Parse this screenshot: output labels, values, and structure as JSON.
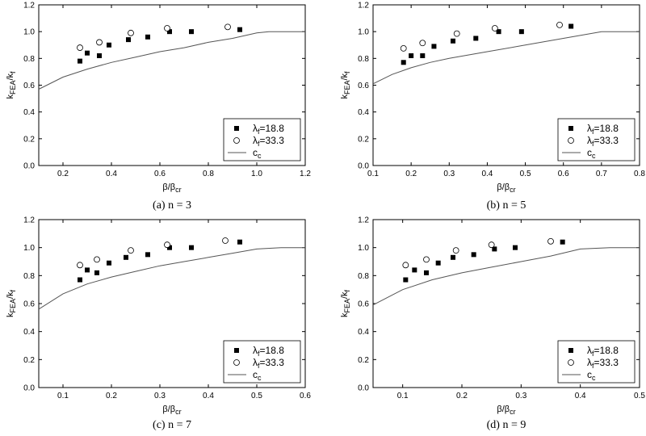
{
  "chart_data": [
    {
      "type": "scatter",
      "caption": "(a) n = 3",
      "xlabel": "β/βcr",
      "ylabel": "kFEA/kf",
      "xlim": [
        0.1,
        1.2
      ],
      "ylim": [
        0.0,
        1.2
      ],
      "xticks": [
        "0.2",
        "0.4",
        "0.6",
        "0.8",
        "1.0",
        "1.2"
      ],
      "yticks": [
        "0.0",
        "0.2",
        "0.4",
        "0.6",
        "0.8",
        "1.0",
        "1.2"
      ],
      "legend_position": "bottom-right",
      "series": [
        {
          "name": "λf=18.8",
          "marker": "filled-square",
          "x": [
            0.27,
            0.3,
            0.35,
            0.39,
            0.47,
            0.55,
            0.64,
            0.73,
            0.93
          ],
          "y": [
            0.78,
            0.84,
            0.82,
            0.9,
            0.94,
            0.96,
            1.0,
            1.0,
            1.015
          ]
        },
        {
          "name": "λf=33.3",
          "marker": "open-circle",
          "x": [
            0.27,
            0.35,
            0.48,
            0.63,
            0.88
          ],
          "y": [
            0.88,
            0.92,
            0.99,
            1.025,
            1.035
          ]
        },
        {
          "name": "cc",
          "marker": "line",
          "x": [
            0.1,
            0.2,
            0.3,
            0.4,
            0.5,
            0.6,
            0.7,
            0.8,
            0.9,
            1.0,
            1.05,
            1.2
          ],
          "y": [
            0.57,
            0.66,
            0.72,
            0.77,
            0.81,
            0.85,
            0.88,
            0.92,
            0.95,
            0.99,
            1.0,
            1.0
          ]
        }
      ]
    },
    {
      "type": "scatter",
      "caption": "(b) n = 5",
      "xlabel": "β/βcr",
      "ylabel": "kFEA/kf",
      "xlim": [
        0.1,
        0.8
      ],
      "ylim": [
        0.0,
        1.2
      ],
      "xticks": [
        "0.1",
        "0.2",
        "0.3",
        "0.4",
        "0.5",
        "0.6",
        "0.7",
        "0.8"
      ],
      "yticks": [
        "0.0",
        "0.2",
        "0.4",
        "0.6",
        "0.8",
        "1.0",
        "1.2"
      ],
      "legend_position": "bottom-right",
      "series": [
        {
          "name": "λf=18.8",
          "marker": "filled-square",
          "x": [
            0.18,
            0.2,
            0.23,
            0.26,
            0.31,
            0.37,
            0.43,
            0.49,
            0.62
          ],
          "y": [
            0.77,
            0.82,
            0.82,
            0.89,
            0.93,
            0.95,
            1.0,
            1.0,
            1.04
          ]
        },
        {
          "name": "λf=33.3",
          "marker": "open-circle",
          "x": [
            0.18,
            0.23,
            0.32,
            0.42,
            0.59
          ],
          "y": [
            0.875,
            0.915,
            0.985,
            1.025,
            1.05
          ]
        },
        {
          "name": "cc",
          "marker": "line",
          "x": [
            0.1,
            0.15,
            0.2,
            0.25,
            0.3,
            0.4,
            0.5,
            0.6,
            0.7,
            0.8
          ],
          "y": [
            0.61,
            0.68,
            0.73,
            0.77,
            0.8,
            0.85,
            0.9,
            0.95,
            1.0,
            1.0
          ]
        }
      ]
    },
    {
      "type": "scatter",
      "caption": "(c) n = 7",
      "xlabel": "β/βcr",
      "ylabel": "kFEA/kf",
      "xlim": [
        0.05,
        0.6
      ],
      "ylim": [
        0.0,
        1.2
      ],
      "xticks": [
        "0.1",
        "0.2",
        "0.3",
        "0.4",
        "0.5",
        "0.6"
      ],
      "yticks": [
        "0.0",
        "0.2",
        "0.4",
        "0.6",
        "0.8",
        "1.0",
        "1.2"
      ],
      "legend_position": "bottom-right",
      "series": [
        {
          "name": "λf=18.8",
          "marker": "filled-square",
          "x": [
            0.135,
            0.15,
            0.17,
            0.195,
            0.23,
            0.275,
            0.32,
            0.365,
            0.465
          ],
          "y": [
            0.77,
            0.84,
            0.82,
            0.89,
            0.93,
            0.95,
            1.0,
            1.0,
            1.04
          ]
        },
        {
          "name": "λf=33.3",
          "marker": "open-circle",
          "x": [
            0.135,
            0.17,
            0.24,
            0.315,
            0.435
          ],
          "y": [
            0.875,
            0.915,
            0.98,
            1.02,
            1.05
          ]
        },
        {
          "name": "cc",
          "marker": "line",
          "x": [
            0.05,
            0.1,
            0.15,
            0.2,
            0.25,
            0.3,
            0.35,
            0.4,
            0.45,
            0.5,
            0.55,
            0.6
          ],
          "y": [
            0.56,
            0.67,
            0.74,
            0.79,
            0.83,
            0.87,
            0.9,
            0.93,
            0.96,
            0.99,
            1.0,
            1.0
          ]
        }
      ]
    },
    {
      "type": "scatter",
      "caption": "(d) n = 9",
      "xlabel": "β/βcr",
      "ylabel": "kFEA/kf",
      "xlim": [
        0.05,
        0.5
      ],
      "ylim": [
        0.0,
        1.2
      ],
      "xticks": [
        "0.1",
        "0.2",
        "0.3",
        "0.4",
        "0.5"
      ],
      "yticks": [
        "0.0",
        "0.2",
        "0.4",
        "0.6",
        "0.8",
        "1.0",
        "1.2"
      ],
      "legend_position": "bottom-right",
      "series": [
        {
          "name": "λf=18.8",
          "marker": "filled-square",
          "x": [
            0.105,
            0.12,
            0.14,
            0.16,
            0.185,
            0.22,
            0.255,
            0.29,
            0.37
          ],
          "y": [
            0.77,
            0.84,
            0.82,
            0.89,
            0.93,
            0.95,
            0.99,
            1.0,
            1.04
          ]
        },
        {
          "name": "λf=33.3",
          "marker": "open-circle",
          "x": [
            0.105,
            0.14,
            0.19,
            0.25,
            0.35
          ],
          "y": [
            0.875,
            0.915,
            0.98,
            1.02,
            1.045
          ]
        },
        {
          "name": "cc",
          "marker": "line",
          "x": [
            0.05,
            0.1,
            0.15,
            0.2,
            0.25,
            0.3,
            0.35,
            0.4,
            0.45,
            0.5
          ],
          "y": [
            0.59,
            0.7,
            0.77,
            0.82,
            0.86,
            0.9,
            0.94,
            0.99,
            1.0,
            1.0
          ]
        }
      ]
    }
  ]
}
